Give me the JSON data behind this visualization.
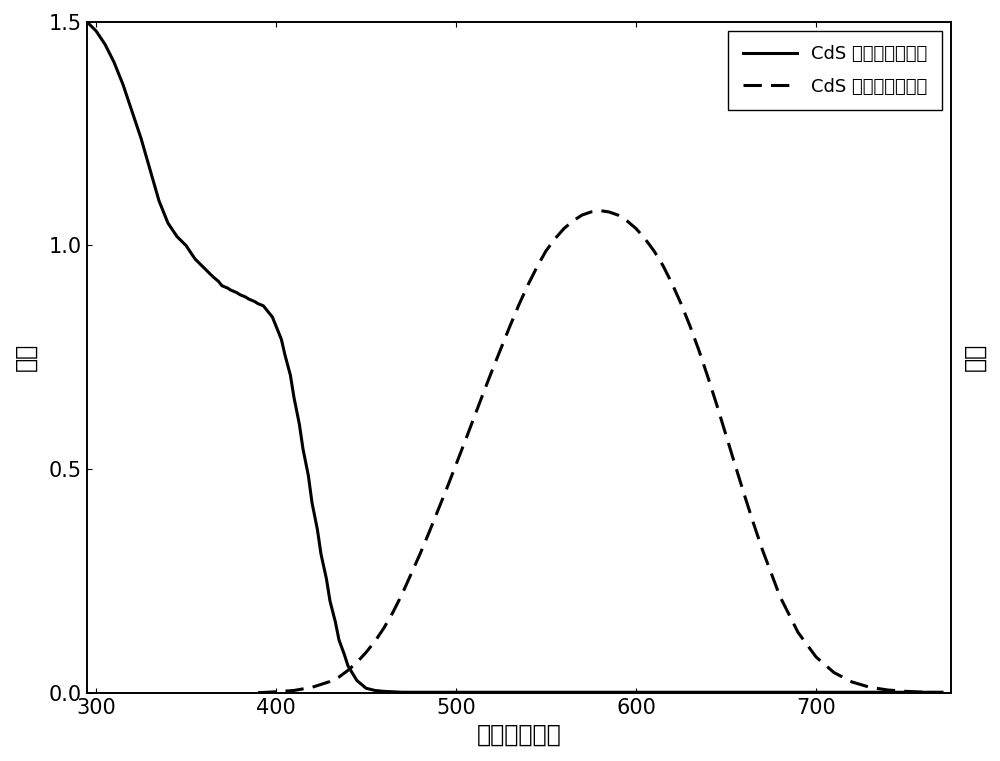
{
  "title": "",
  "xlabel": "波长（纳米）",
  "ylabel_left": "吸收",
  "ylabel_right": "荧光",
  "xlim": [
    295,
    775
  ],
  "ylim": [
    0.0,
    1.5
  ],
  "xticks": [
    300,
    400,
    500,
    600,
    700
  ],
  "yticks": [
    0.0,
    0.5,
    1.0,
    1.5
  ],
  "legend_solid": "CdS 量子点吸收光谱",
  "legend_dashed": "CdS 量子点发光光谱",
  "absorption_x": [
    295,
    300,
    305,
    310,
    315,
    320,
    325,
    330,
    335,
    340,
    345,
    350,
    355,
    360,
    365,
    368,
    370,
    373,
    375,
    378,
    380,
    383,
    385,
    388,
    390,
    393,
    395,
    398,
    400,
    403,
    405,
    408,
    410,
    413,
    415,
    418,
    420,
    423,
    425,
    428,
    430,
    433,
    435,
    438,
    440,
    443,
    445,
    448,
    450,
    455,
    460,
    465,
    470,
    480,
    490,
    500,
    520,
    540,
    560,
    580,
    600,
    650,
    700,
    750,
    770
  ],
  "absorption_y": [
    1.5,
    1.48,
    1.45,
    1.41,
    1.36,
    1.3,
    1.24,
    1.17,
    1.1,
    1.05,
    1.02,
    1.0,
    0.97,
    0.95,
    0.93,
    0.92,
    0.91,
    0.905,
    0.9,
    0.895,
    0.89,
    0.885,
    0.88,
    0.875,
    0.87,
    0.865,
    0.855,
    0.84,
    0.82,
    0.79,
    0.755,
    0.71,
    0.66,
    0.6,
    0.545,
    0.485,
    0.425,
    0.365,
    0.31,
    0.255,
    0.205,
    0.158,
    0.118,
    0.085,
    0.06,
    0.04,
    0.027,
    0.017,
    0.01,
    0.005,
    0.003,
    0.002,
    0.001,
    0.001,
    0.001,
    0.001,
    0.001,
    0.001,
    0.001,
    0.001,
    0.001,
    0.001,
    0.001,
    0.001,
    0.001
  ],
  "emission_x": [
    390,
    400,
    410,
    420,
    430,
    435,
    440,
    445,
    450,
    455,
    460,
    465,
    470,
    475,
    480,
    485,
    490,
    495,
    500,
    505,
    510,
    515,
    520,
    525,
    530,
    535,
    540,
    545,
    550,
    555,
    560,
    565,
    570,
    575,
    580,
    585,
    590,
    595,
    600,
    605,
    610,
    615,
    620,
    625,
    630,
    635,
    640,
    645,
    650,
    655,
    660,
    665,
    670,
    680,
    690,
    700,
    710,
    720,
    730,
    740,
    750,
    760,
    770
  ],
  "emission_y": [
    0.0,
    0.002,
    0.005,
    0.012,
    0.025,
    0.035,
    0.05,
    0.068,
    0.09,
    0.115,
    0.145,
    0.18,
    0.22,
    0.265,
    0.31,
    0.358,
    0.408,
    0.458,
    0.51,
    0.562,
    0.615,
    0.668,
    0.72,
    0.77,
    0.82,
    0.868,
    0.912,
    0.952,
    0.988,
    1.015,
    1.038,
    1.055,
    1.068,
    1.075,
    1.078,
    1.075,
    1.068,
    1.055,
    1.038,
    1.015,
    0.988,
    0.955,
    0.915,
    0.87,
    0.82,
    0.765,
    0.705,
    0.642,
    0.576,
    0.51,
    0.445,
    0.382,
    0.322,
    0.215,
    0.135,
    0.08,
    0.045,
    0.024,
    0.012,
    0.006,
    0.003,
    0.001,
    0.0
  ],
  "line_color": "#000000",
  "line_width": 2.2,
  "background_color": "#ffffff",
  "font_size_label": 17,
  "font_size_tick": 15,
  "font_size_legend": 13
}
